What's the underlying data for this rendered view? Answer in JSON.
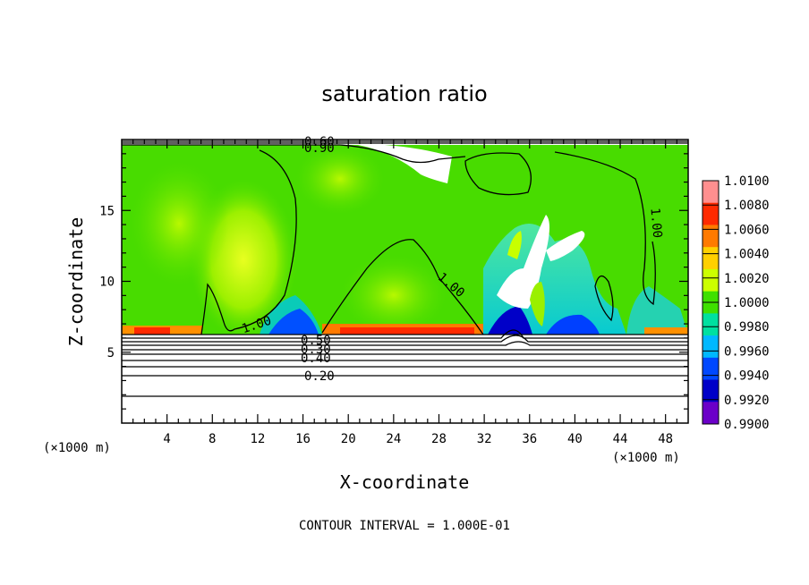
{
  "chart_data": {
    "type": "heatmap",
    "title": "saturation ratio",
    "xlabel": "X-coordinate",
    "ylabel": "Z-coordinate",
    "x_unit_label": "(×1000 m)",
    "x_unit_label_right": "(×1000 m)",
    "xlim": [
      0,
      50
    ],
    "ylim": [
      0,
      20
    ],
    "x_ticks": [
      "4",
      "8",
      "12",
      "16",
      "20",
      "24",
      "28",
      "32",
      "36",
      "40",
      "44",
      "48"
    ],
    "y_ticks": [
      "5",
      "10",
      "15"
    ],
    "colorbar": {
      "levels": [
        "1.0100",
        "1.0080",
        "1.0060",
        "1.0040",
        "1.0020",
        "1.0000",
        "0.9980",
        "0.9960",
        "0.9940",
        "0.9920",
        "0.9900"
      ],
      "colors": [
        "#ff8f8f",
        "#ff2a00",
        "#ff7a00",
        "#ffd000",
        "#ccff00",
        "#3fe000",
        "#00e0a0",
        "#00b8ff",
        "#0048ff",
        "#0000c8",
        "#6b00c8"
      ]
    },
    "contour_labels": [
      {
        "text": "0.60",
        "x": 17.5,
        "y": 19.5
      },
      {
        "text": "0.90",
        "x": 17.5,
        "y": 19.1
      },
      {
        "text": "1.00",
        "x": 11.5,
        "y": 7.0
      },
      {
        "text": "1.00",
        "x": 28.0,
        "y": 9.8
      },
      {
        "text": "1.00",
        "x": 46.0,
        "y": 14.5
      },
      {
        "text": "0.50",
        "x": 17.5,
        "y": 5.8
      },
      {
        "text": "0.30",
        "x": 17.5,
        "y": 5.2
      },
      {
        "text": "0.40",
        "x": 17.5,
        "y": 4.6
      },
      {
        "text": "0.20",
        "x": 17.5,
        "y": 3.3
      }
    ],
    "note": "CONTOUR INTERVAL = 1.000E-01"
  }
}
